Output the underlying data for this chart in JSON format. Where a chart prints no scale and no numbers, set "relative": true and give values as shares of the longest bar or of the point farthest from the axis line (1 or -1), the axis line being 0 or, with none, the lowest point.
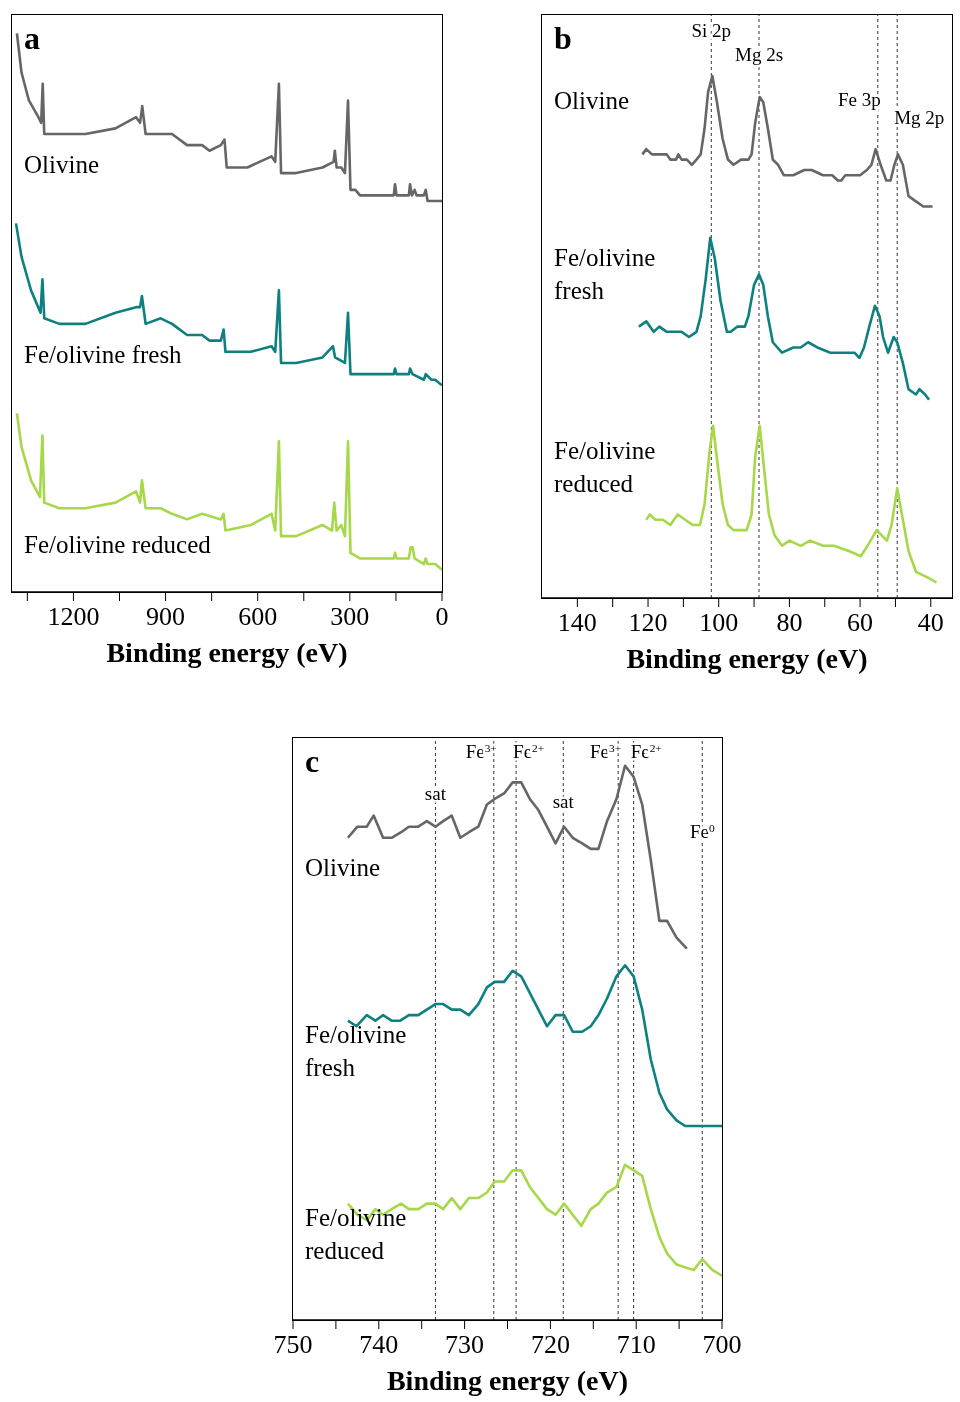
{
  "chart_data": [
    {
      "type": "line",
      "title": "a",
      "xlabel": "Binding energy (eV)",
      "relative": true,
      "marker": "none",
      "xlim": [
        1400,
        0
      ],
      "xticks": [
        {
          "value": 1350,
          "label": null
        },
        1200,
        {
          "value": 1050,
          "label": null
        },
        900,
        {
          "value": 750,
          "label": null
        },
        600,
        {
          "value": 450,
          "label": null
        },
        300,
        {
          "value": 150,
          "label": null
        },
        0
      ],
      "series": [
        {
          "name": "Olivine",
          "color": "#666666",
          "x": [
            1384,
            1369,
            1345,
            1314,
            1305,
            1300,
            1295,
            1246,
            1161,
            1063,
            996,
            983,
            976,
            965,
            916,
            879,
            830,
            781,
            757,
            720,
            708,
            701,
            634,
            555,
            543,
            531,
            524,
            475,
            389,
            353,
            349,
            343,
            328,
            316,
            306,
            298,
            282,
            267,
            157,
            153,
            148,
            108,
            104,
            98,
            89,
            83,
            59,
            53,
            47,
            22,
            0
          ],
          "values": [
            1.0,
            0.93,
            0.88,
            0.85,
            0.84,
            0.91,
            0.82,
            0.82,
            0.82,
            0.83,
            0.85,
            0.84,
            0.87,
            0.82,
            0.82,
            0.82,
            0.8,
            0.8,
            0.79,
            0.8,
            0.81,
            0.76,
            0.76,
            0.78,
            0.77,
            0.91,
            0.75,
            0.75,
            0.76,
            0.77,
            0.79,
            0.76,
            0.76,
            0.75,
            0.88,
            0.72,
            0.72,
            0.71,
            0.71,
            0.73,
            0.71,
            0.71,
            0.73,
            0.71,
            0.72,
            0.71,
            0.71,
            0.72,
            0.7,
            0.7,
            0.7
          ]
        },
        {
          "name": "Fe/olivine fresh",
          "color": "#0e8080",
          "x": [
            1387,
            1369,
            1338,
            1307,
            1301,
            1295,
            1246,
            1161,
            1063,
            996,
            983,
            977,
            965,
            916,
            879,
            830,
            781,
            757,
            720,
            711,
            705,
            622,
            555,
            543,
            531,
            524,
            475,
            389,
            355,
            348,
            316,
            306,
            298,
            267,
            157,
            153,
            148,
            108,
            104,
            96,
            59,
            53,
            34,
            22,
            0
          ],
          "values": [
            0.66,
            0.6,
            0.54,
            0.5,
            0.56,
            0.49,
            0.48,
            0.48,
            0.5,
            0.51,
            0.51,
            0.53,
            0.48,
            0.49,
            0.48,
            0.46,
            0.46,
            0.45,
            0.45,
            0.47,
            0.43,
            0.43,
            0.44,
            0.43,
            0.54,
            0.41,
            0.41,
            0.42,
            0.44,
            0.42,
            0.41,
            0.5,
            0.39,
            0.39,
            0.39,
            0.4,
            0.39,
            0.39,
            0.4,
            0.39,
            0.38,
            0.39,
            0.38,
            0.38,
            0.37
          ]
        },
        {
          "name": "Fe/olivine reduced",
          "color": "#a6d84a",
          "x": [
            1384,
            1369,
            1338,
            1309,
            1301,
            1295,
            1246,
            1161,
            1063,
            996,
            983,
            977,
            965,
            916,
            879,
            830,
            781,
            720,
            711,
            705,
            622,
            555,
            543,
            531,
            524,
            475,
            389,
            358,
            351,
            343,
            328,
            316,
            306,
            298,
            267,
            157,
            153,
            148,
            108,
            102,
            96,
            89,
            59,
            53,
            47,
            22,
            0
          ],
          "values": [
            0.32,
            0.26,
            0.2,
            0.17,
            0.28,
            0.16,
            0.15,
            0.15,
            0.16,
            0.18,
            0.16,
            0.2,
            0.15,
            0.15,
            0.14,
            0.13,
            0.14,
            0.13,
            0.14,
            0.11,
            0.12,
            0.14,
            0.11,
            0.27,
            0.1,
            0.1,
            0.12,
            0.11,
            0.16,
            0.11,
            0.12,
            0.1,
            0.27,
            0.07,
            0.06,
            0.06,
            0.07,
            0.06,
            0.06,
            0.08,
            0.08,
            0.06,
            0.05,
            0.06,
            0.05,
            0.05,
            0.04
          ]
        }
      ]
    },
    {
      "type": "line",
      "title": "b",
      "xlabel": "Binding energy (eV)",
      "relative": true,
      "marker": "none",
      "xlim": [
        150,
        34
      ],
      "xticks": [
        140,
        {
          "value": 130,
          "label": null
        },
        120,
        {
          "value": 110,
          "label": null
        },
        100,
        {
          "value": 90,
          "label": null
        },
        80,
        {
          "value": 70,
          "label": null
        },
        60,
        {
          "value": 50,
          "label": null
        },
        40
      ],
      "ref_lines": [
        {
          "axis": "x",
          "value": 102.1,
          "label": "Si 2p",
          "line_style": "dashed"
        },
        {
          "axis": "x",
          "value": 88.6,
          "label": "Mg 2s",
          "line_style": "dashed"
        },
        {
          "axis": "x",
          "value": 55.0,
          "label": "Fe 3p",
          "line_style": "dashed"
        },
        {
          "axis": "x",
          "value": 49.5,
          "label": "Mg 2p",
          "line_style": "dashed"
        }
      ],
      "series": [
        {
          "name": "Olivine",
          "color": "#666666",
          "x": [
            121.6,
            120.5,
            118.9,
            117.4,
            116.3,
            114.7,
            113.7,
            112.1,
            111.4,
            110.5,
            109.0,
            107.6,
            106.3,
            105.1,
            104.0,
            103.0,
            101.8,
            100.5,
            98.9,
            97.4,
            95.8,
            93.7,
            92.6,
            91.6,
            90.7,
            89.7,
            88.4,
            87.4,
            86.1,
            84.7,
            83.2,
            81.6,
            78.9,
            75.8,
            73.7,
            70.5,
            67.9,
            66.3,
            65.3,
            64.2,
            62.1,
            60.0,
            58.1,
            56.8,
            55.6,
            54.2,
            52.6,
            51.4,
            50.3,
            49.3,
            47.9,
            46.3,
            44.2,
            42.1,
            39.5
          ],
          "values": [
            0.85,
            0.86,
            0.85,
            0.85,
            0.85,
            0.85,
            0.84,
            0.84,
            0.85,
            0.84,
            0.84,
            0.83,
            0.84,
            0.85,
            0.9,
            0.97,
            1.0,
            0.95,
            0.88,
            0.84,
            0.83,
            0.84,
            0.84,
            0.84,
            0.85,
            0.91,
            0.96,
            0.95,
            0.9,
            0.84,
            0.83,
            0.81,
            0.81,
            0.82,
            0.82,
            0.81,
            0.81,
            0.8,
            0.8,
            0.81,
            0.81,
            0.81,
            0.82,
            0.83,
            0.86,
            0.83,
            0.8,
            0.8,
            0.83,
            0.85,
            0.83,
            0.77,
            0.76,
            0.75,
            0.75
          ]
        },
        {
          "name": "Fe/olivine fresh",
          "color": "#0e8080",
          "x": [
            122.6,
            120.5,
            118.4,
            116.8,
            114.7,
            112.6,
            110.5,
            108.4,
            106.3,
            105.1,
            103.7,
            102.4,
            101.1,
            99.5,
            97.7,
            96.6,
            94.7,
            92.6,
            91.6,
            90.0,
            88.6,
            87.4,
            86.1,
            84.7,
            82.1,
            78.9,
            76.8,
            74.7,
            72.1,
            68.4,
            65.3,
            63.2,
            61.6,
            60.2,
            58.9,
            57.4,
            55.8,
            54.5,
            53.5,
            52.1,
            50.5,
            49.5,
            47.9,
            46.3,
            44.2,
            43.2,
            41.6,
            40.5
          ],
          "values": [
            0.52,
            0.53,
            0.51,
            0.52,
            0.51,
            0.51,
            0.51,
            0.5,
            0.51,
            0.54,
            0.61,
            0.69,
            0.65,
            0.57,
            0.51,
            0.51,
            0.52,
            0.52,
            0.54,
            0.6,
            0.62,
            0.6,
            0.54,
            0.49,
            0.47,
            0.48,
            0.48,
            0.49,
            0.48,
            0.47,
            0.47,
            0.47,
            0.47,
            0.46,
            0.48,
            0.52,
            0.56,
            0.54,
            0.5,
            0.47,
            0.5,
            0.49,
            0.45,
            0.4,
            0.39,
            0.4,
            0.39,
            0.38
          ]
        },
        {
          "name": "Fe/olivine reduced",
          "color": "#a6d84a",
          "x": [
            120.5,
            119.5,
            117.9,
            115.8,
            113.7,
            111.6,
            109.5,
            107.4,
            105.3,
            104.0,
            102.6,
            101.6,
            100.2,
            98.9,
            97.4,
            95.8,
            93.7,
            92.1,
            90.7,
            89.7,
            88.4,
            87.2,
            85.8,
            84.2,
            82.1,
            80.0,
            76.8,
            74.2,
            70.5,
            67.4,
            63.2,
            59.8,
            57.9,
            55.3,
            53.9,
            52.4,
            51.1,
            49.5,
            47.9,
            46.3,
            44.2,
            41.1,
            38.4
          ],
          "values": [
            0.15,
            0.16,
            0.15,
            0.15,
            0.14,
            0.16,
            0.15,
            0.14,
            0.14,
            0.18,
            0.28,
            0.33,
            0.25,
            0.18,
            0.14,
            0.13,
            0.13,
            0.13,
            0.16,
            0.27,
            0.33,
            0.25,
            0.16,
            0.12,
            0.1,
            0.11,
            0.1,
            0.11,
            0.1,
            0.1,
            0.09,
            0.08,
            0.1,
            0.13,
            0.12,
            0.11,
            0.14,
            0.21,
            0.15,
            0.09,
            0.05,
            0.04,
            0.03
          ]
        }
      ]
    },
    {
      "type": "line",
      "title": "c",
      "xlabel": "Binding energy (eV)",
      "relative": true,
      "marker": "none",
      "xlim": [
        750,
        700
      ],
      "xticks": [
        750,
        {
          "value": 745,
          "label": null
        },
        740,
        {
          "value": 735,
          "label": null
        },
        730,
        {
          "value": 725,
          "label": null
        },
        720,
        {
          "value": 715,
          "label": null
        },
        710,
        {
          "value": 705,
          "label": null
        },
        700
      ],
      "ref_lines": [
        {
          "axis": "x",
          "value": 733.4,
          "label": "sat",
          "line_style": "dashed"
        },
        {
          "axis": "x",
          "value": 726.6,
          "label": "Fe$^{3+}$",
          "line_style": "dashed"
        },
        {
          "axis": "x",
          "value": 724.0,
          "label": "Fe$^{2+}$",
          "line_style": "dashed"
        },
        {
          "axis": "x",
          "value": 718.5,
          "label": "sat",
          "line_style": "dashed"
        },
        {
          "axis": "x",
          "value": 712.1,
          "label": "Fe$^{3+}$",
          "line_style": "dashed"
        },
        {
          "axis": "x",
          "value": 710.3,
          "label": "Fe$^{2+}$",
          "line_style": "dashed"
        },
        {
          "axis": "x",
          "value": 702.3,
          "label": "Fe$^{0}$",
          "line_style": "dashed"
        }
      ],
      "series": [
        {
          "name": "Olivine",
          "color": "#666666",
          "x": [
            743.6,
            742.5,
            741.4,
            740.6,
            739.5,
            738.5,
            737.4,
            736.5,
            735.4,
            734.4,
            733.4,
            732.5,
            731.5,
            730.5,
            729.5,
            728.4,
            727.4,
            726.5,
            725.4,
            724.4,
            723.4,
            722.4,
            721.4,
            720.4,
            719.4,
            718.4,
            717.4,
            716.3,
            715.3,
            714.4,
            713.4,
            712.3,
            711.3,
            710.3,
            709.3,
            708.3,
            707.3,
            706.4,
            705.3,
            704.1
          ],
          "values": [
            0.87,
            0.89,
            0.89,
            0.91,
            0.87,
            0.87,
            0.88,
            0.89,
            0.89,
            0.9,
            0.89,
            0.9,
            0.91,
            0.87,
            0.88,
            0.89,
            0.93,
            0.94,
            0.95,
            0.97,
            0.97,
            0.94,
            0.92,
            0.89,
            0.86,
            0.89,
            0.87,
            0.86,
            0.85,
            0.85,
            0.9,
            0.94,
            1.0,
            0.98,
            0.93,
            0.83,
            0.72,
            0.72,
            0.69,
            0.67
          ]
        },
        {
          "name": "Fe/olivine fresh",
          "color": "#0e8080",
          "x": [
            743.6,
            742.6,
            741.4,
            740.4,
            739.5,
            738.5,
            737.5,
            736.5,
            735.4,
            734.4,
            733.4,
            732.5,
            731.5,
            730.5,
            729.5,
            728.4,
            727.4,
            726.5,
            725.4,
            724.4,
            723.4,
            722.4,
            721.4,
            720.4,
            719.4,
            718.4,
            717.4,
            716.3,
            715.3,
            714.4,
            713.4,
            712.3,
            711.3,
            710.3,
            709.3,
            708.3,
            707.3,
            706.4,
            705.3,
            704.3,
            703.3,
            702.2,
            701.1,
            700.0
          ],
          "values": [
            0.54,
            0.53,
            0.55,
            0.54,
            0.55,
            0.54,
            0.54,
            0.55,
            0.55,
            0.56,
            0.57,
            0.57,
            0.56,
            0.56,
            0.55,
            0.57,
            0.6,
            0.61,
            0.61,
            0.63,
            0.62,
            0.59,
            0.56,
            0.53,
            0.55,
            0.55,
            0.52,
            0.52,
            0.53,
            0.55,
            0.58,
            0.62,
            0.64,
            0.62,
            0.56,
            0.47,
            0.41,
            0.38,
            0.36,
            0.35,
            0.35,
            0.35,
            0.35,
            0.35
          ]
        },
        {
          "name": "Fe/olivine reduced",
          "color": "#a6d84a",
          "x": [
            743.6,
            742.5,
            741.4,
            740.4,
            739.5,
            738.5,
            737.4,
            736.5,
            735.4,
            734.4,
            733.4,
            732.5,
            731.5,
            730.5,
            729.5,
            728.4,
            727.4,
            726.5,
            725.4,
            724.4,
            723.4,
            722.4,
            721.4,
            720.4,
            719.4,
            718.4,
            717.4,
            716.4,
            715.3,
            714.4,
            713.4,
            712.3,
            711.3,
            710.3,
            709.3,
            708.3,
            707.3,
            706.4,
            705.3,
            703.3,
            702.3,
            701.1,
            700.0
          ],
          "values": [
            0.21,
            0.19,
            0.18,
            0.2,
            0.19,
            0.2,
            0.21,
            0.2,
            0.2,
            0.21,
            0.21,
            0.2,
            0.22,
            0.2,
            0.22,
            0.22,
            0.23,
            0.25,
            0.25,
            0.27,
            0.27,
            0.24,
            0.22,
            0.2,
            0.19,
            0.21,
            0.19,
            0.17,
            0.2,
            0.21,
            0.23,
            0.24,
            0.28,
            0.27,
            0.26,
            0.2,
            0.15,
            0.12,
            0.1,
            0.09,
            0.11,
            0.09,
            0.08
          ]
        }
      ]
    }
  ]
}
